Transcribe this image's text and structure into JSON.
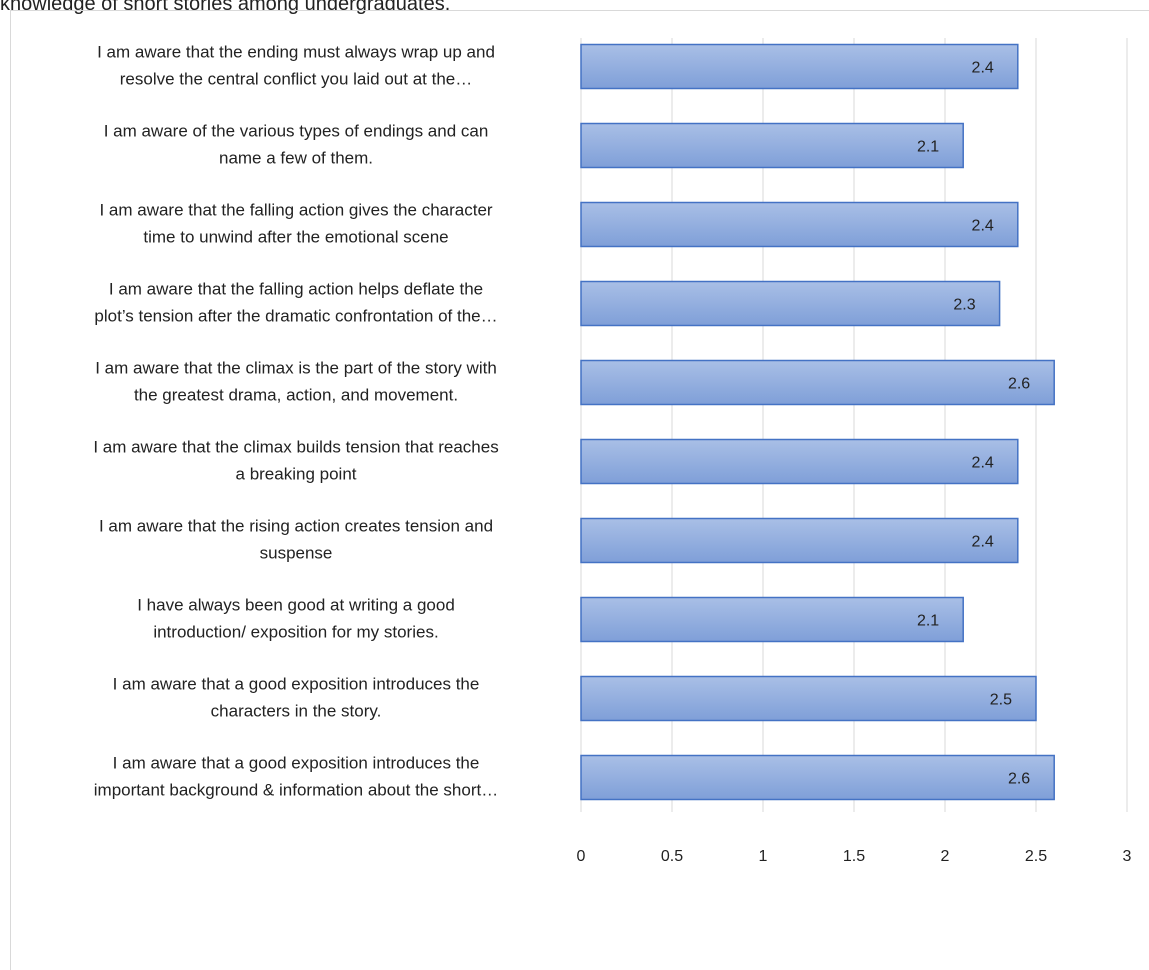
{
  "header": {
    "text": "knowledge of short stories among undergraduates."
  },
  "chart_data": {
    "type": "bar",
    "orientation": "horizontal",
    "title": "",
    "xlabel": "",
    "ylabel": "",
    "xlim": [
      0,
      3
    ],
    "x_ticks": [
      "0",
      "0.5",
      "1",
      "1.5",
      "2",
      "2.5",
      "3"
    ],
    "grid": true,
    "bar_color": "#8FAADC",
    "bar_color_gradient_end": "#4472C4",
    "bar_border_color": "#4472C4",
    "categories": [
      [
        "I am aware that the ending must always wrap up and",
        "resolve the central conflict you laid out at the…"
      ],
      [
        "I am aware of the various types of endings and can",
        "name a few of them."
      ],
      [
        "I am aware that the falling action gives the character",
        "time to unwind after the emotional scene"
      ],
      [
        "I am aware that the falling action helps deflate the",
        "plot’s tension after the dramatic confrontation of the…"
      ],
      [
        "I am aware that the climax is the part of the story with",
        "the greatest drama, action, and movement."
      ],
      [
        "I am aware that the climax builds tension that reaches",
        "a breaking point"
      ],
      [
        "I am aware that the rising action creates tension and",
        "suspense"
      ],
      [
        "I have always been good at writing a good",
        "introduction/ exposition for my stories."
      ],
      [
        "I am aware that a good exposition introduces the",
        "characters in the story."
      ],
      [
        "I am aware that a good exposition introduces the",
        "important background & information about the short…"
      ]
    ],
    "values": [
      2.4,
      2.1,
      2.4,
      2.3,
      2.6,
      2.4,
      2.4,
      2.1,
      2.5,
      2.6
    ],
    "data_labels": [
      "2.4",
      "2.1",
      "2.4",
      "2.3",
      "2.6",
      "2.4",
      "2.4",
      "2.1",
      "2.5",
      "2.6"
    ]
  }
}
